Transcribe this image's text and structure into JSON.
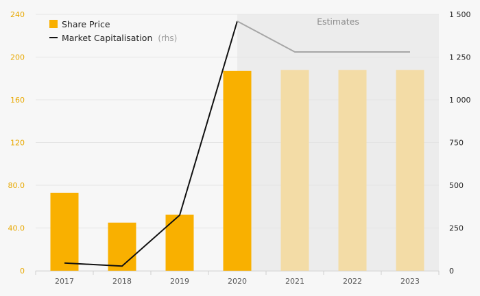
{
  "chart_data": {
    "type": "bar",
    "categories": [
      "2017",
      "2018",
      "2019",
      "2020",
      "2021",
      "2022",
      "2023"
    ],
    "series": [
      {
        "name": "Share Price",
        "axis": "left",
        "kind": "bar",
        "color": "#f9b000",
        "estimate_color": "#f3dca6",
        "values": [
          73,
          45,
          52.5,
          187,
          188,
          188,
          188
        ]
      },
      {
        "name": "Market Capitalisation",
        "axis": "right",
        "kind": "line",
        "color": "#111111",
        "estimate_color": "#a6a6a6",
        "values": [
          45,
          27,
          325,
          1460,
          1280,
          1280,
          1280
        ]
      }
    ],
    "estimate_start_category": "2020",
    "estimate_bar_start_category": "2021",
    "estimates_label": "Estimates",
    "legend": {
      "share_price": "Share Price",
      "market_cap": "Market Capitalisation",
      "market_cap_unit": "(rhs)",
      "placement": "top-left"
    },
    "y_left": {
      "ticks": [
        0,
        40,
        80,
        120,
        160,
        200,
        240
      ],
      "tick_labels": [
        "0",
        "40.0",
        "80.0",
        "120",
        "160",
        "200",
        "240"
      ],
      "ylim": [
        0,
        240
      ],
      "color": "#e8a800"
    },
    "y_right": {
      "ticks": [
        0,
        250,
        500,
        750,
        1000,
        1250,
        1500
      ],
      "tick_labels": [
        "0",
        "250",
        "500",
        "750",
        "1 000",
        "1 250",
        "1 500"
      ],
      "ylim": [
        0,
        1500
      ]
    },
    "grid": true,
    "colors": {
      "estimate_background": "#ececec",
      "grid": "#e4e4e4"
    }
  }
}
